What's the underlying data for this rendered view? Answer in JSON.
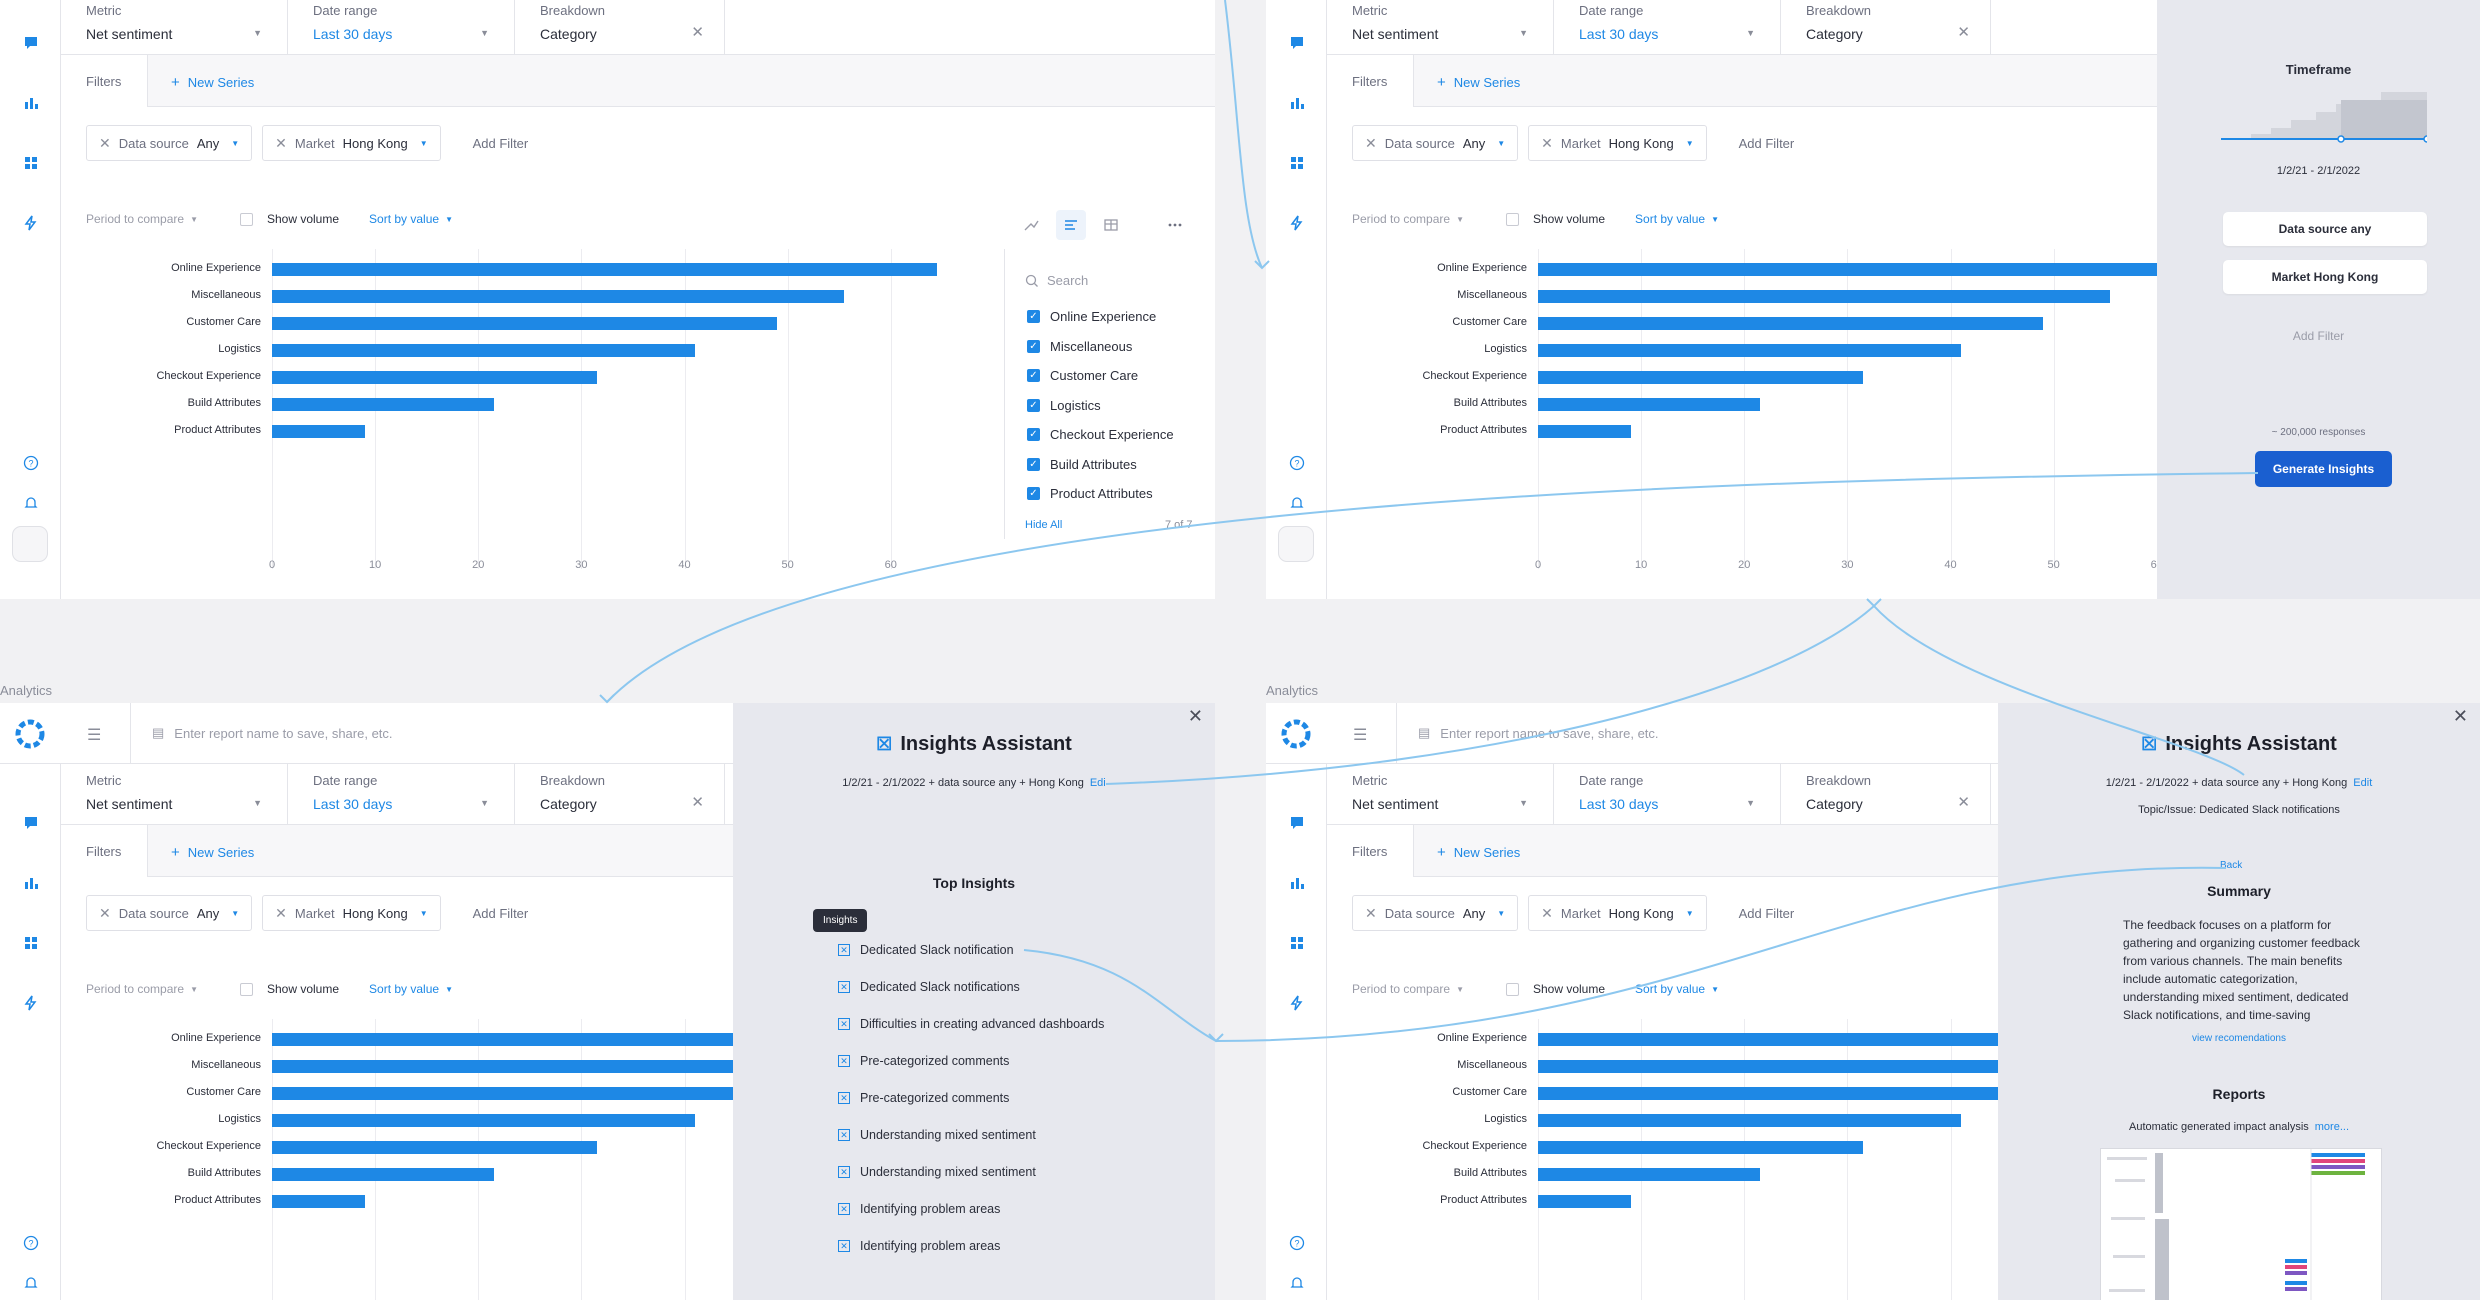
{
  "metric": {
    "label": "Metric",
    "value": "Net sentiment"
  },
  "date_range": {
    "label": "Date range",
    "value": "Last 30 days"
  },
  "breakdown": {
    "label": "Breakdown",
    "value": "Category"
  },
  "tabs": {
    "filters": "Filters",
    "new_series": "New Series"
  },
  "filters": {
    "data_source_key": "Data source",
    "data_source_val": "Any",
    "market_key": "Market",
    "market_val": "Hong Kong",
    "add_filter": "Add Filter"
  },
  "toolbar": {
    "period": "Period to compare",
    "show_volume": "Show volume",
    "sort": "Sort by value"
  },
  "chart_data": {
    "type": "bar",
    "orientation": "horizontal",
    "categories": [
      "Online Experience",
      "Miscellaneous",
      "Customer Care",
      "Logistics",
      "Checkout Experience",
      "Build Attributes",
      "Product Attributes"
    ],
    "values": [
      64.5,
      55.5,
      49,
      41,
      31.5,
      21.5,
      9
    ],
    "xlim": [
      0,
      64
    ],
    "xticks": [
      0,
      10,
      20,
      30,
      40,
      50,
      60
    ],
    "xlabel": "",
    "ylabel": ""
  },
  "legend": {
    "search": "Search",
    "items": [
      "Online Experience",
      "Miscellaneous",
      "Customer Care",
      "Logistics",
      "Checkout Experience",
      "Build Attributes",
      "Product Attributes"
    ],
    "hide_all": "Hide All",
    "count": "7 of 7"
  },
  "sidebar_panel": {
    "timeframe": "Timeframe",
    "date": "1/2/21 - 2/1/2022",
    "btn_source": "Data source any",
    "btn_market": "Market Hong Kong",
    "add_filter": "Add Filter",
    "responses": "~ 200,000 responses",
    "generate": "Generate Insights"
  },
  "analytics_title": "Analytics",
  "report_placeholder": "Enter report name to save, share, etc.",
  "assistant": {
    "title": "Insights Assistant",
    "subtitle": "1/2/21 - 2/1/2022 + data source any + Hong Kong",
    "edit": "Edit",
    "edit_short": "Edi",
    "top_insights": "Top Insights",
    "tooltip": "Insights",
    "insights": [
      "Dedicated Slack notification",
      "Dedicated Slack notifications",
      "Difficulties in creating advanced dashboards",
      "Pre-categorized comments",
      "Pre-categorized comments",
      "Understanding mixed sentiment",
      "Understanding mixed sentiment",
      "Identifying problem areas",
      "Identifying problem areas"
    ],
    "topic": "Topic/Issue: Dedicated Slack notifications",
    "back": "Back",
    "summary_title": "Summary",
    "summary": "The feedback focuses on a platform for gathering and organizing customer feedback from various channels. The main benefits include automatic categorization, understanding mixed sentiment, dedicated Slack notifications, and time-saving",
    "view_rec": "view recomendations",
    "reports": "Reports",
    "auto": "Automatic generated impact analysis",
    "more": "more..."
  },
  "colors": {
    "accent": "#1e88e5",
    "button": "#1a5fd0",
    "panel": "#e7e8ee"
  }
}
